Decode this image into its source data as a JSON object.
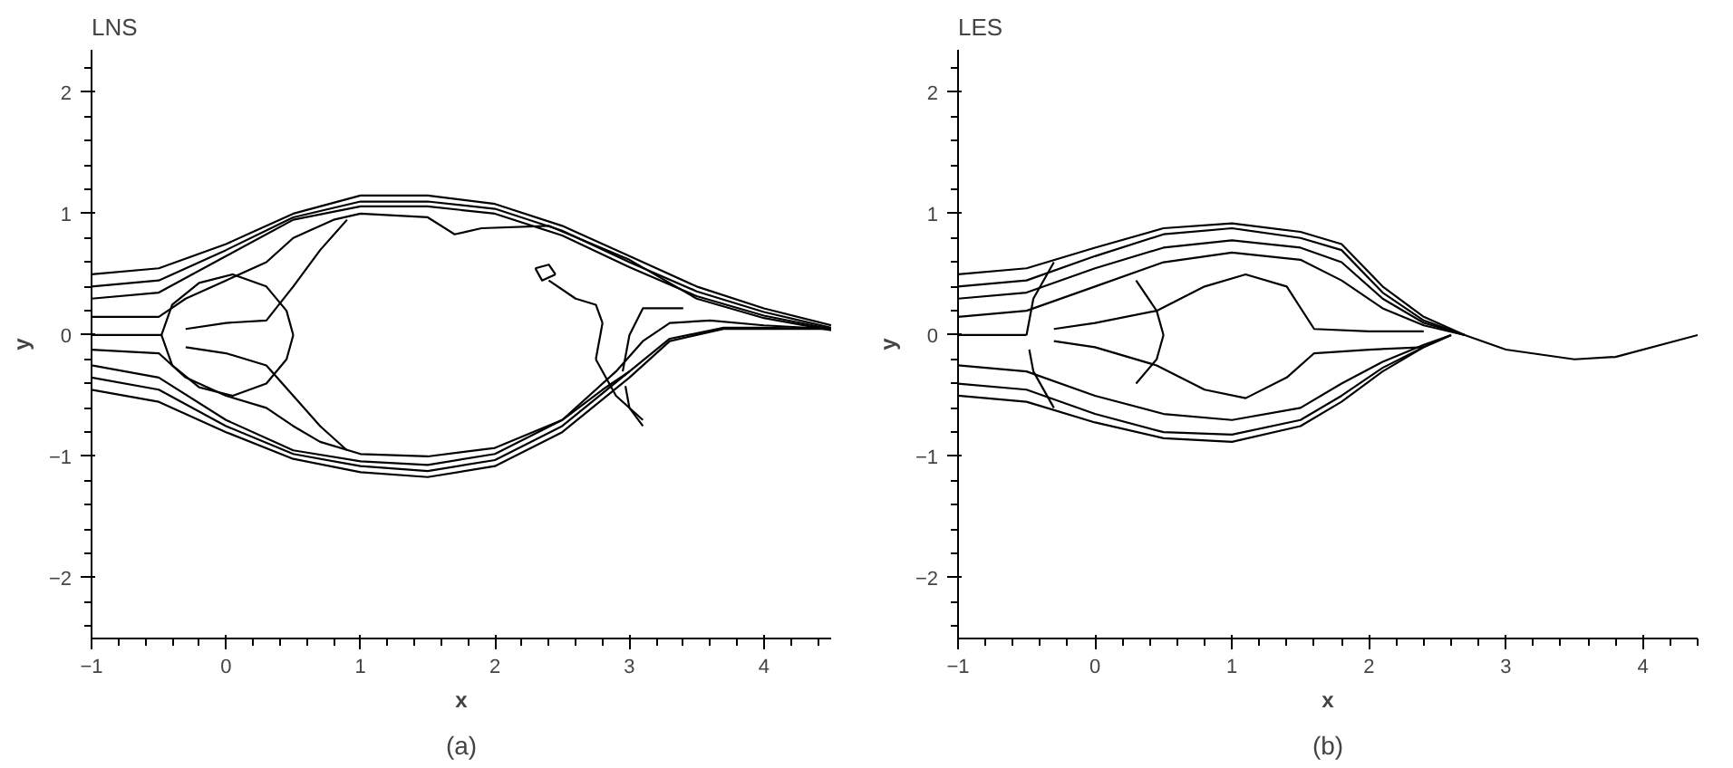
{
  "chart_data": [
    {
      "type": "line",
      "title": "LNS",
      "xlabel": "x",
      "ylabel": "y",
      "annotations": [
        "(a)"
      ],
      "xlim": [
        -1,
        4.5
      ],
      "ylim": [
        -2.5,
        2.35
      ],
      "xticks": [
        -1,
        0,
        1,
        2,
        3,
        4
      ],
      "yticks": [
        -2,
        -1,
        0,
        1,
        2
      ],
      "marker": "none",
      "line_style": "solid",
      "series": [
        {
          "color": "#000000",
          "x": [
            -1,
            -0.5,
            0,
            0.5,
            1,
            1.5,
            2,
            2.5,
            3,
            3.5,
            4,
            4.5
          ],
          "values": [
            0.5,
            0.55,
            0.75,
            1.0,
            1.15,
            1.15,
            1.08,
            0.9,
            0.65,
            0.4,
            0.22,
            0.08
          ]
        },
        {
          "color": "#000000",
          "x": [
            -1,
            -0.5,
            0,
            0.5,
            1,
            1.5,
            2,
            2.5,
            3,
            3.5,
            4,
            4.5
          ],
          "values": [
            0.4,
            0.45,
            0.7,
            0.97,
            1.1,
            1.1,
            1.04,
            0.86,
            0.6,
            0.36,
            0.19,
            0.06
          ]
        },
        {
          "color": "#000000",
          "x": [
            -1,
            -0.5,
            0,
            0.5,
            1,
            1.5,
            2,
            2.5,
            3,
            3.5,
            4,
            4.5
          ],
          "values": [
            0.3,
            0.35,
            0.65,
            0.95,
            1.06,
            1.06,
            1.0,
            0.82,
            0.56,
            0.32,
            0.16,
            0.05
          ]
        },
        {
          "color": "#000000",
          "x": [
            -1,
            -0.5,
            -0.3,
            0,
            0.3,
            0.5,
            0.8,
            1,
            1.5,
            1.7,
            1.9,
            2.4,
            3.0,
            3.5,
            4,
            4.5
          ],
          "values": [
            0.15,
            0.15,
            0.3,
            0.45,
            0.6,
            0.8,
            0.95,
            1.0,
            0.97,
            0.83,
            0.88,
            0.9,
            0.62,
            0.3,
            0.14,
            0.04
          ]
        },
        {
          "color": "#000000",
          "x": [
            -1,
            -0.5,
            0,
            0.5,
            1,
            1.5,
            2,
            2.5,
            3,
            3.3,
            3.7,
            4,
            4.5
          ],
          "values": [
            -0.45,
            -0.55,
            -0.8,
            -1.02,
            -1.13,
            -1.17,
            -1.08,
            -0.8,
            -0.35,
            -0.05,
            0.05,
            0.05,
            0.05
          ]
        },
        {
          "color": "#000000",
          "x": [
            -1,
            -0.5,
            0,
            0.5,
            1,
            1.5,
            2,
            2.5,
            3,
            3.3,
            3.7,
            4,
            4.5
          ],
          "values": [
            -0.35,
            -0.45,
            -0.75,
            -0.98,
            -1.08,
            -1.12,
            -1.03,
            -0.75,
            -0.3,
            -0.03,
            0.06,
            0.06,
            0.05
          ]
        },
        {
          "color": "#000000",
          "x": [
            -1,
            -0.5,
            0,
            0.5,
            1,
            1.5,
            2,
            2.5,
            2.9,
            3.1,
            3.3,
            3.6,
            4,
            4.5
          ],
          "values": [
            -0.25,
            -0.35,
            -0.7,
            -0.95,
            -1.04,
            -1.07,
            -0.98,
            -0.7,
            -0.3,
            -0.05,
            0.1,
            0.12,
            0.08,
            0.05
          ]
        },
        {
          "color": "#000000",
          "x": [
            -1,
            -0.5,
            -0.3,
            0,
            0.3,
            0.5,
            0.7,
            1,
            1.5,
            2,
            2.5,
            2.8,
            3.0
          ],
          "values": [
            -0.12,
            -0.15,
            -0.35,
            -0.5,
            -0.6,
            -0.75,
            -0.88,
            -0.98,
            -1.0,
            -0.93,
            -0.7,
            -0.45,
            -0.3
          ]
        },
        {
          "color": "#000000",
          "x": [
            -1,
            -0.48
          ],
          "values": [
            0.0,
            0.0
          ]
        },
        {
          "color": "#000000",
          "x": [
            -0.48,
            -0.4,
            -0.2,
            0.05,
            0.3,
            0.45,
            0.5
          ],
          "values": [
            0.0,
            0.25,
            0.43,
            0.5,
            0.4,
            0.2,
            0.0
          ]
        },
        {
          "color": "#000000",
          "x": [
            -0.48,
            -0.4,
            -0.2,
            0.05,
            0.3,
            0.45,
            0.5
          ],
          "values": [
            0.0,
            -0.25,
            -0.43,
            -0.5,
            -0.4,
            -0.2,
            0.0
          ]
        },
        {
          "color": "#000000",
          "x": [
            -0.3,
            0,
            0.3,
            0.5,
            0.7,
            0.9
          ],
          "values": [
            0.05,
            0.1,
            0.12,
            0.4,
            0.7,
            0.95
          ]
        },
        {
          "color": "#000000",
          "x": [
            -0.3,
            0,
            0.3,
            0.5,
            0.7,
            0.9
          ],
          "values": [
            -0.1,
            -0.15,
            -0.25,
            -0.5,
            -0.75,
            -0.95
          ]
        },
        {
          "color": "#000000",
          "x": [
            2.4,
            2.6,
            2.75,
            2.8
          ],
          "values": [
            0.45,
            0.3,
            0.25,
            0.1
          ]
        },
        {
          "color": "#000000",
          "x": [
            2.75,
            2.8
          ],
          "values": [
            -0.2,
            0.1
          ]
        },
        {
          "color": "#000000",
          "x": [
            2.75,
            2.9,
            3.1
          ],
          "values": [
            -0.2,
            -0.5,
            -0.7
          ]
        },
        {
          "color": "#000000",
          "x": [
            2.95,
            3.0,
            3.1,
            3.4
          ],
          "values": [
            -0.3,
            0.0,
            0.22,
            0.22
          ]
        },
        {
          "color": "#000000",
          "x": [
            2.97,
            3.0,
            3.1
          ],
          "values": [
            -0.42,
            -0.6,
            -0.75
          ]
        },
        {
          "color": "#000000",
          "x": [
            2.3,
            2.4,
            2.45
          ],
          "values": [
            0.55,
            0.58,
            0.5
          ]
        },
        {
          "color": "#000000",
          "x": [
            2.3,
            2.35,
            2.45
          ],
          "values": [
            0.55,
            0.45,
            0.5
          ]
        }
      ]
    },
    {
      "type": "line",
      "title": "LES",
      "xlabel": "x",
      "ylabel": "y",
      "annotations": [
        "(b)"
      ],
      "xlim": [
        -1,
        4.4
      ],
      "ylim": [
        -2.5,
        2.35
      ],
      "xticks": [
        -1,
        0,
        1,
        2,
        3,
        4
      ],
      "yticks": [
        -2,
        -1,
        0,
        1,
        2
      ],
      "marker": "none",
      "line_style": "solid",
      "series": [
        {
          "color": "#000000",
          "x": [
            -1,
            -0.5,
            0,
            0.5,
            1,
            1.5,
            1.8,
            2.1,
            2.4,
            2.7,
            3.0,
            3.5,
            3.8,
            4.4
          ],
          "values": [
            0.5,
            0.55,
            0.72,
            0.88,
            0.92,
            0.85,
            0.75,
            0.4,
            0.15,
            0.0,
            -0.12,
            -0.2,
            -0.18,
            0.0
          ]
        },
        {
          "color": "#000000",
          "x": [
            -1,
            -0.5,
            0,
            0.5,
            1,
            1.5,
            1.8,
            2.1,
            2.4,
            2.7
          ],
          "values": [
            0.4,
            0.45,
            0.65,
            0.83,
            0.88,
            0.8,
            0.7,
            0.35,
            0.12,
            0.0
          ]
        },
        {
          "color": "#000000",
          "x": [
            -1,
            -0.5,
            0,
            0.5,
            1,
            1.5,
            1.8,
            2.1,
            2.4,
            2.7
          ],
          "values": [
            0.3,
            0.35,
            0.55,
            0.72,
            0.78,
            0.72,
            0.6,
            0.3,
            0.1,
            0.0
          ]
        },
        {
          "color": "#000000",
          "x": [
            -1,
            -0.5,
            0,
            0.5,
            1,
            1.5,
            1.8,
            2.1,
            2.4,
            2.7
          ],
          "values": [
            0.15,
            0.2,
            0.4,
            0.6,
            0.68,
            0.62,
            0.45,
            0.22,
            0.08,
            0.0
          ]
        },
        {
          "color": "#000000",
          "x": [
            -0.3,
            0,
            0.45,
            0.8,
            1.1,
            1.4,
            1.6,
            2.0,
            2.4
          ],
          "values": [
            0.05,
            0.1,
            0.2,
            0.4,
            0.5,
            0.4,
            0.05,
            0.03,
            0.03
          ]
        },
        {
          "color": "#000000",
          "x": [
            -1,
            -0.5,
            0,
            0.5,
            1,
            1.5,
            1.8,
            2.1,
            2.4,
            2.6
          ],
          "values": [
            -0.5,
            -0.55,
            -0.72,
            -0.85,
            -0.88,
            -0.75,
            -0.55,
            -0.3,
            -0.1,
            0.0
          ]
        },
        {
          "color": "#000000",
          "x": [
            -1,
            -0.5,
            0,
            0.5,
            1,
            1.5,
            1.8,
            2.1,
            2.4,
            2.6
          ],
          "values": [
            -0.4,
            -0.45,
            -0.65,
            -0.8,
            -0.82,
            -0.7,
            -0.5,
            -0.27,
            -0.1,
            0.0
          ]
        },
        {
          "color": "#000000",
          "x": [
            -1,
            -0.5,
            0,
            0.5,
            1,
            1.5,
            1.8,
            2.1,
            2.4,
            2.6
          ],
          "values": [
            -0.25,
            -0.3,
            -0.5,
            -0.65,
            -0.7,
            -0.6,
            -0.4,
            -0.22,
            -0.08,
            0.0
          ]
        },
        {
          "color": "#000000",
          "x": [
            -0.3,
            0,
            0.45,
            0.8,
            1.1,
            1.4,
            1.6,
            2.0,
            2.4
          ],
          "values": [
            -0.05,
            -0.1,
            -0.25,
            -0.45,
            -0.52,
            -0.35,
            -0.15,
            -0.12,
            -0.1
          ]
        },
        {
          "color": "#000000",
          "x": [
            -1,
            -0.5
          ],
          "values": [
            0.0,
            0.0
          ]
        },
        {
          "color": "#000000",
          "x": [
            -0.5,
            -0.45,
            -0.3
          ],
          "values": [
            0.0,
            0.3,
            0.6
          ]
        },
        {
          "color": "#000000",
          "x": [
            -0.48,
            -0.45,
            -0.3
          ],
          "values": [
            -0.12,
            -0.3,
            -0.6
          ]
        },
        {
          "color": "#000000",
          "x": [
            0.3,
            0.45,
            0.5
          ],
          "values": [
            0.45,
            0.2,
            0.0
          ]
        },
        {
          "color": "#000000",
          "x": [
            0.3,
            0.45,
            0.5
          ],
          "values": [
            -0.4,
            -0.2,
            0.0
          ]
        }
      ]
    }
  ]
}
